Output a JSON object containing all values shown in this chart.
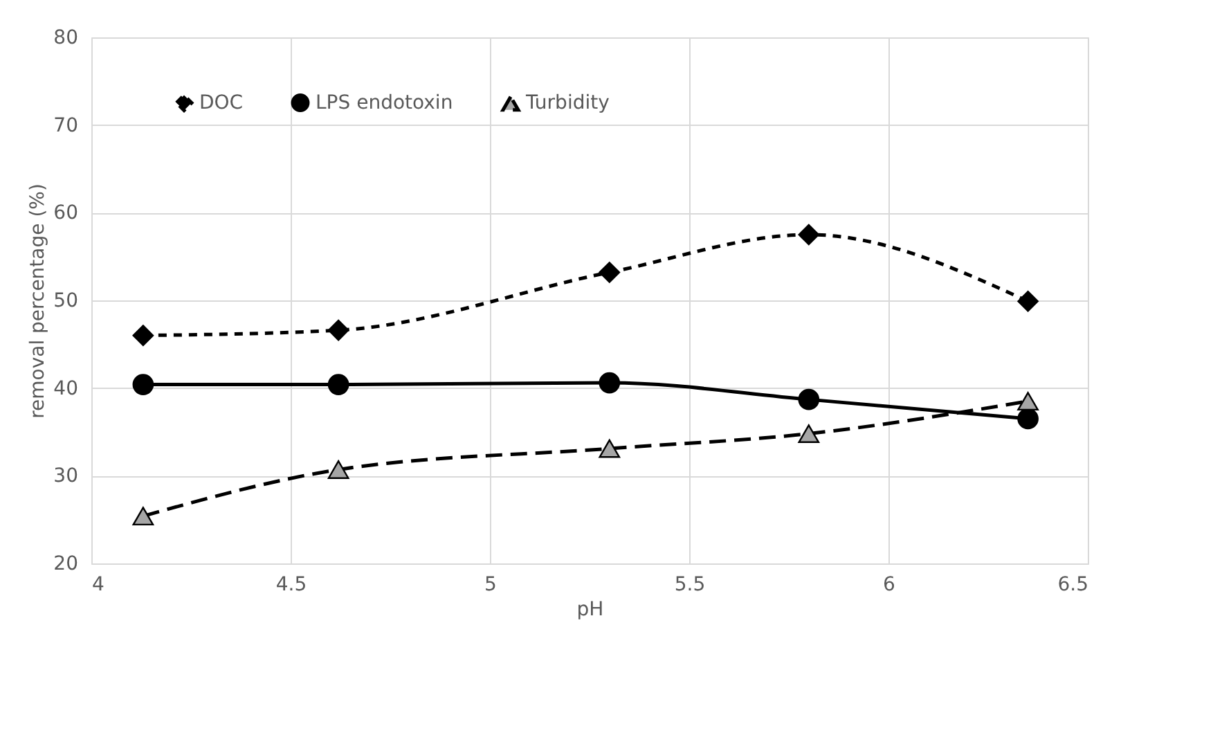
{
  "chart_data": {
    "type": "line",
    "xlabel": "pH",
    "ylabel": "removal percentage (%)",
    "x": [
      4.13,
      4.62,
      5.3,
      5.8,
      6.35
    ],
    "xlim": [
      4,
      6.5
    ],
    "xticks": [
      4,
      4.5,
      5,
      5.5,
      6,
      6.5
    ],
    "ylim": [
      20,
      80
    ],
    "yticks": [
      20,
      30,
      40,
      50,
      60,
      70,
      80
    ],
    "grid": true,
    "legend": "top",
    "series": [
      {
        "name": "DOC",
        "color": "#000000",
        "marker": "diamond",
        "line_style": "dotted",
        "values": [
          46.0,
          46.6,
          53.2,
          57.5,
          49.9
        ]
      },
      {
        "name": "LPS endotoxin",
        "color": "#000000",
        "marker": "circle",
        "line_style": "solid",
        "values": [
          40.4,
          40.4,
          40.6,
          38.7,
          36.5
        ]
      },
      {
        "name": "Turbidity",
        "color": "#a6a6a6",
        "marker": "triangle",
        "line_style": "dashed",
        "values": [
          25.4,
          30.7,
          33.1,
          34.8,
          38.5
        ]
      }
    ]
  }
}
